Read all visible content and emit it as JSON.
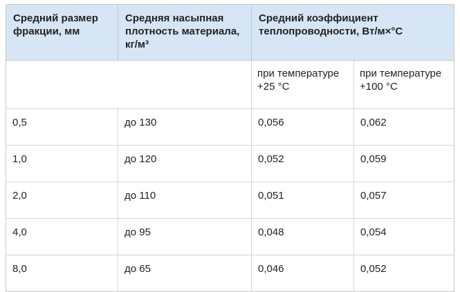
{
  "table": {
    "headers": [
      "Средний размер фракции, мм",
      "Средняя насыпная плотность материала, кг/м³",
      "Средний коэффициент теплопроводности, Вт/м×°С"
    ],
    "subheaders": [
      "при температуре +25 °С",
      "при температуре +100 °С"
    ],
    "rows": [
      [
        "0,5",
        "до 130",
        "0,056",
        "0,062"
      ],
      [
        "1,0",
        "до 120",
        "0,052",
        "0,059"
      ],
      [
        "2,0",
        "до 110",
        "0,051",
        "0,057"
      ],
      [
        "4,0",
        "до 95",
        "0,048",
        "0,054"
      ],
      [
        "8,0",
        "до 65",
        "0,046",
        "0,052"
      ]
    ]
  }
}
